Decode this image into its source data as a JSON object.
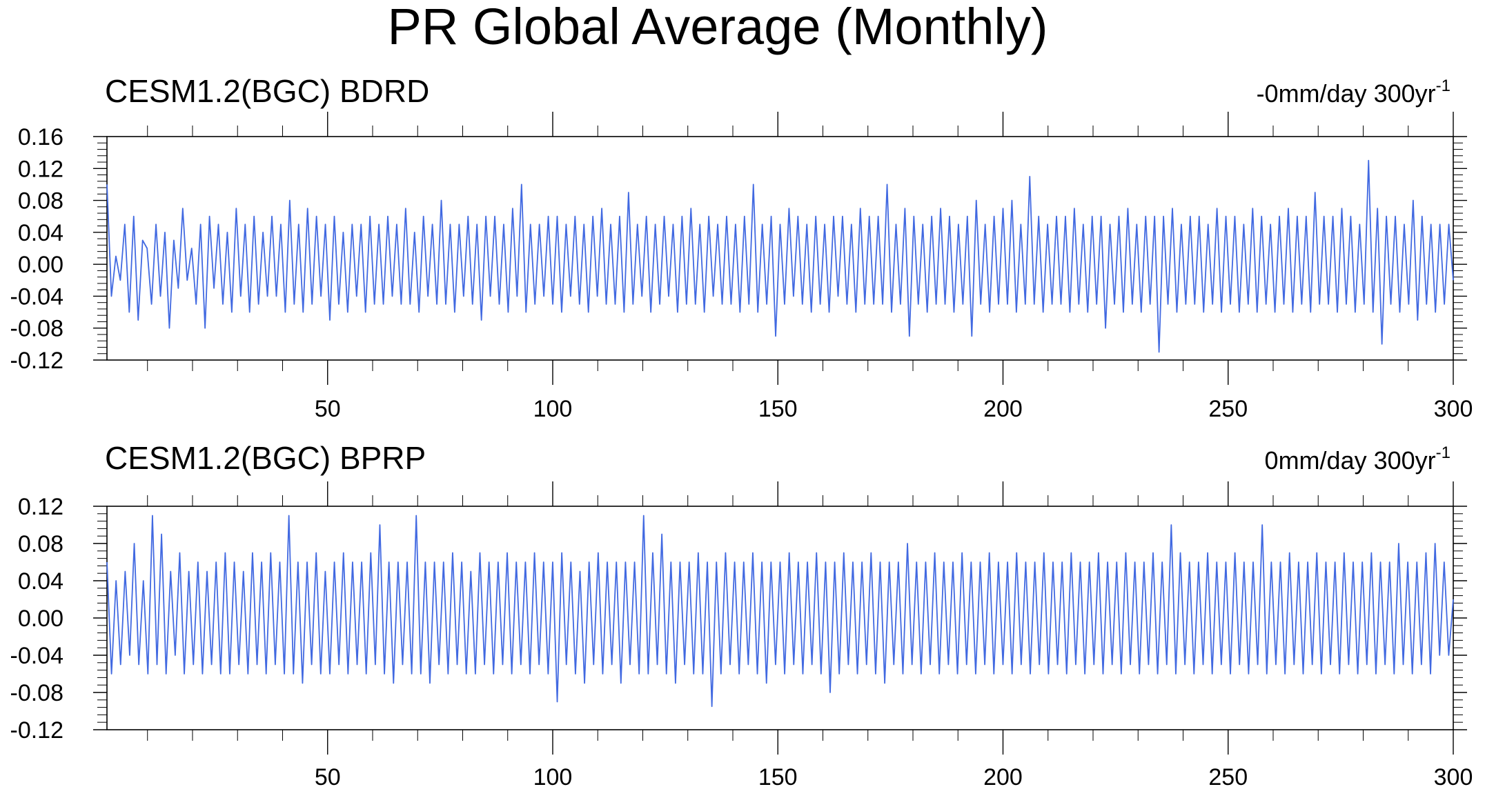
{
  "title": "PR Global Average (Monthly)",
  "chart_data": [
    {
      "type": "line",
      "title": "CESM1.2(BGC) BDRD",
      "annotation": "-0mm/day 300yr",
      "annotation_superscript": "-1",
      "xlim": [
        1,
        300
      ],
      "ylim": [
        -0.12,
        0.16
      ],
      "xticks": [
        50,
        100,
        150,
        200,
        250,
        300
      ],
      "yticks": [
        "0.16",
        "0.12",
        "0.08",
        "0.04",
        "0.00",
        "-0.04",
        "-0.08",
        "-0.12"
      ],
      "color": "#4169E1",
      "series": [
        {
          "values": [
            0.1,
            -0.04,
            0.01,
            -0.02,
            0.05,
            -0.06,
            0.06,
            -0.07,
            0.03,
            0.02,
            -0.05,
            0.05,
            -0.04,
            0.04,
            -0.08,
            0.03,
            -0.03,
            0.07,
            -0.02,
            0.02,
            -0.05,
            0.05,
            -0.08,
            0.06,
            -0.03,
            0.05,
            -0.05,
            0.04,
            -0.06,
            0.07,
            -0.04,
            0.05,
            -0.06,
            0.06,
            -0.05,
            0.04,
            -0.04,
            0.06,
            -0.04,
            0.05,
            -0.06,
            0.08,
            -0.05,
            0.05,
            -0.06,
            0.07,
            -0.05,
            0.06,
            -0.04,
            0.05,
            -0.07,
            0.06,
            -0.05,
            0.04,
            -0.06,
            0.05,
            -0.04,
            0.05,
            -0.06,
            0.06,
            -0.05,
            0.05,
            -0.05,
            0.06,
            -0.04,
            0.05,
            -0.05,
            0.07,
            -0.05,
            0.04,
            -0.06,
            0.06,
            -0.04,
            0.05,
            -0.05,
            0.08,
            -0.05,
            0.05,
            -0.06,
            0.05,
            -0.04,
            0.06,
            -0.05,
            0.05,
            -0.07,
            0.06,
            -0.04,
            0.06,
            -0.05,
            0.05,
            -0.06,
            0.07,
            -0.04,
            0.1,
            -0.06,
            0.05,
            -0.05,
            0.05,
            -0.04,
            0.06,
            -0.05,
            0.06,
            -0.06,
            0.05,
            -0.04,
            0.06,
            -0.05,
            0.05,
            -0.06,
            0.06,
            -0.04,
            0.07,
            -0.05,
            0.05,
            -0.05,
            0.06,
            -0.06,
            0.09,
            -0.05,
            0.05,
            -0.04,
            0.06,
            -0.06,
            0.05,
            -0.05,
            0.06,
            -0.04,
            0.05,
            -0.06,
            0.06,
            -0.05,
            0.07,
            -0.05,
            0.05,
            -0.06,
            0.06,
            -0.04,
            0.05,
            -0.05,
            0.06,
            -0.05,
            0.05,
            -0.06,
            0.06,
            -0.05,
            0.1,
            -0.06,
            0.05,
            -0.05,
            0.06,
            -0.09,
            0.05,
            -0.05,
            0.07,
            -0.04,
            0.06,
            -0.05,
            0.05,
            -0.06,
            0.06,
            -0.05,
            0.05,
            -0.06,
            0.06,
            -0.04,
            0.06,
            -0.05,
            0.05,
            -0.06,
            0.07,
            -0.05,
            0.06,
            -0.05,
            0.06,
            -0.05,
            0.1,
            -0.06,
            0.05,
            -0.05,
            0.07,
            -0.09,
            0.06,
            -0.05,
            0.05,
            -0.06,
            0.06,
            -0.05,
            0.07,
            -0.05,
            0.06,
            -0.06,
            0.05,
            -0.05,
            0.06,
            -0.09,
            0.08,
            -0.05,
            0.05,
            -0.06,
            0.06,
            -0.05,
            0.07,
            -0.05,
            0.08,
            -0.06,
            0.05,
            -0.05,
            0.11,
            -0.05,
            0.06,
            -0.06,
            0.05,
            -0.05,
            0.06,
            -0.05,
            0.06,
            -0.06,
            0.07,
            -0.05,
            0.05,
            -0.06,
            0.06,
            -0.05,
            0.06,
            -0.08,
            0.05,
            -0.05,
            0.06,
            -0.06,
            0.07,
            -0.05,
            0.05,
            -0.06,
            0.06,
            -0.05,
            0.06,
            -0.11,
            0.06,
            -0.05,
            0.07,
            -0.06,
            0.05,
            -0.05,
            0.06,
            -0.05,
            0.06,
            -0.06,
            0.05,
            -0.05,
            0.07,
            -0.06,
            0.06,
            -0.05,
            0.06,
            -0.06,
            0.05,
            -0.05,
            0.07,
            -0.06,
            0.06,
            -0.05,
            0.05,
            -0.06,
            0.06,
            -0.05,
            0.07,
            -0.06,
            0.06,
            -0.05,
            0.06,
            -0.06,
            0.09,
            -0.05,
            0.06,
            -0.05,
            0.06,
            -0.06,
            0.07,
            -0.05,
            0.06,
            -0.06,
            0.05,
            -0.05,
            0.13,
            -0.06,
            0.07,
            -0.1,
            0.06,
            -0.05,
            0.06,
            -0.06,
            0.05,
            -0.05,
            0.08,
            -0.07,
            0.06,
            -0.05,
            0.05,
            -0.06,
            0.05,
            -0.05,
            0.05,
            -0.02
          ]
        }
      ]
    },
    {
      "type": "line",
      "title": "CESM1.2(BGC) BPRP",
      "annotation": "0mm/day 300yr",
      "annotation_superscript": "-1",
      "xlim": [
        1,
        300
      ],
      "ylim": [
        -0.12,
        0.12
      ],
      "xticks": [
        50,
        100,
        150,
        200,
        250,
        300
      ],
      "yticks": [
        "0.12",
        "0.08",
        "0.04",
        "0.00",
        "-0.04",
        "-0.08",
        "-0.12"
      ],
      "color": "#4169E1",
      "series": [
        {
          "values": [
            0.06,
            -0.06,
            0.04,
            -0.05,
            0.05,
            -0.04,
            0.08,
            -0.05,
            0.04,
            -0.06,
            0.11,
            -0.05,
            0.09,
            -0.06,
            0.05,
            -0.04,
            0.07,
            -0.06,
            0.05,
            -0.05,
            0.06,
            -0.06,
            0.05,
            -0.05,
            0.06,
            -0.06,
            0.07,
            -0.06,
            0.06,
            -0.05,
            0.05,
            -0.06,
            0.07,
            -0.05,
            0.06,
            -0.06,
            0.07,
            -0.05,
            0.06,
            -0.06,
            0.11,
            -0.06,
            0.06,
            -0.07,
            0.06,
            -0.05,
            0.07,
            -0.06,
            0.05,
            -0.06,
            0.06,
            -0.05,
            0.07,
            -0.06,
            0.06,
            -0.05,
            0.06,
            -0.06,
            0.07,
            -0.05,
            0.1,
            -0.06,
            0.06,
            -0.07,
            0.06,
            -0.05,
            0.06,
            -0.06,
            0.11,
            -0.06,
            0.06,
            -0.07,
            0.06,
            -0.05,
            0.06,
            -0.06,
            0.07,
            -0.05,
            0.06,
            -0.06,
            0.05,
            -0.06,
            0.07,
            -0.05,
            0.06,
            -0.06,
            0.06,
            -0.05,
            0.07,
            -0.06,
            0.06,
            -0.05,
            0.06,
            -0.06,
            0.07,
            -0.05,
            0.06,
            -0.06,
            0.06,
            -0.09,
            0.07,
            -0.05,
            0.06,
            -0.06,
            0.05,
            -0.07,
            0.06,
            -0.05,
            0.07,
            -0.06,
            0.06,
            -0.05,
            0.06,
            -0.07,
            0.06,
            -0.05,
            0.06,
            -0.06,
            0.11,
            -0.06,
            0.07,
            -0.05,
            0.09,
            -0.06,
            0.06,
            -0.07,
            0.06,
            -0.05,
            0.06,
            -0.06,
            0.07,
            -0.06,
            0.06,
            -0.095,
            0.06,
            -0.06,
            0.07,
            -0.05,
            0.06,
            -0.06,
            0.06,
            -0.05,
            0.07,
            -0.06,
            0.06,
            -0.07,
            0.06,
            -0.05,
            0.06,
            -0.06,
            0.07,
            -0.05,
            0.06,
            -0.06,
            0.06,
            -0.05,
            0.07,
            -0.06,
            0.06,
            -0.08,
            0.06,
            -0.06,
            0.07,
            -0.05,
            0.06,
            -0.06,
            0.06,
            -0.05,
            0.07,
            -0.06,
            0.06,
            -0.07,
            0.06,
            -0.05,
            0.06,
            -0.06,
            0.08,
            -0.05,
            0.06,
            -0.06,
            0.06,
            -0.05,
            0.07,
            -0.06,
            0.06,
            -0.05,
            0.06,
            -0.06,
            0.07,
            -0.05,
            0.06,
            -0.06,
            0.06,
            -0.05,
            0.07,
            -0.06,
            0.06,
            -0.05,
            0.06,
            -0.06,
            0.07,
            -0.05,
            0.06,
            -0.06,
            0.06,
            -0.05,
            0.07,
            -0.06,
            0.06,
            -0.05,
            0.06,
            -0.06,
            0.07,
            -0.05,
            0.06,
            -0.06,
            0.06,
            -0.05,
            0.07,
            -0.06,
            0.06,
            -0.05,
            0.06,
            -0.06,
            0.07,
            -0.05,
            0.06,
            -0.06,
            0.06,
            -0.05,
            0.07,
            -0.06,
            0.06,
            -0.05,
            0.1,
            -0.06,
            0.07,
            -0.05,
            0.06,
            -0.06,
            0.06,
            -0.05,
            0.07,
            -0.06,
            0.06,
            -0.05,
            0.06,
            -0.06,
            0.07,
            -0.05,
            0.06,
            -0.06,
            0.06,
            -0.05,
            0.1,
            -0.06,
            0.06,
            -0.05,
            0.06,
            -0.06,
            0.07,
            -0.05,
            0.06,
            -0.06,
            0.06,
            -0.05,
            0.07,
            -0.06,
            0.06,
            -0.05,
            0.06,
            -0.06,
            0.07,
            -0.05,
            0.06,
            -0.06,
            0.06,
            -0.05,
            0.07,
            -0.06,
            0.06,
            -0.05,
            0.06,
            -0.06,
            0.08,
            -0.05,
            0.06,
            -0.06,
            0.06,
            -0.05,
            0.07,
            -0.06,
            0.08,
            -0.04,
            0.06,
            -0.04,
            0.02
          ]
        }
      ]
    }
  ]
}
